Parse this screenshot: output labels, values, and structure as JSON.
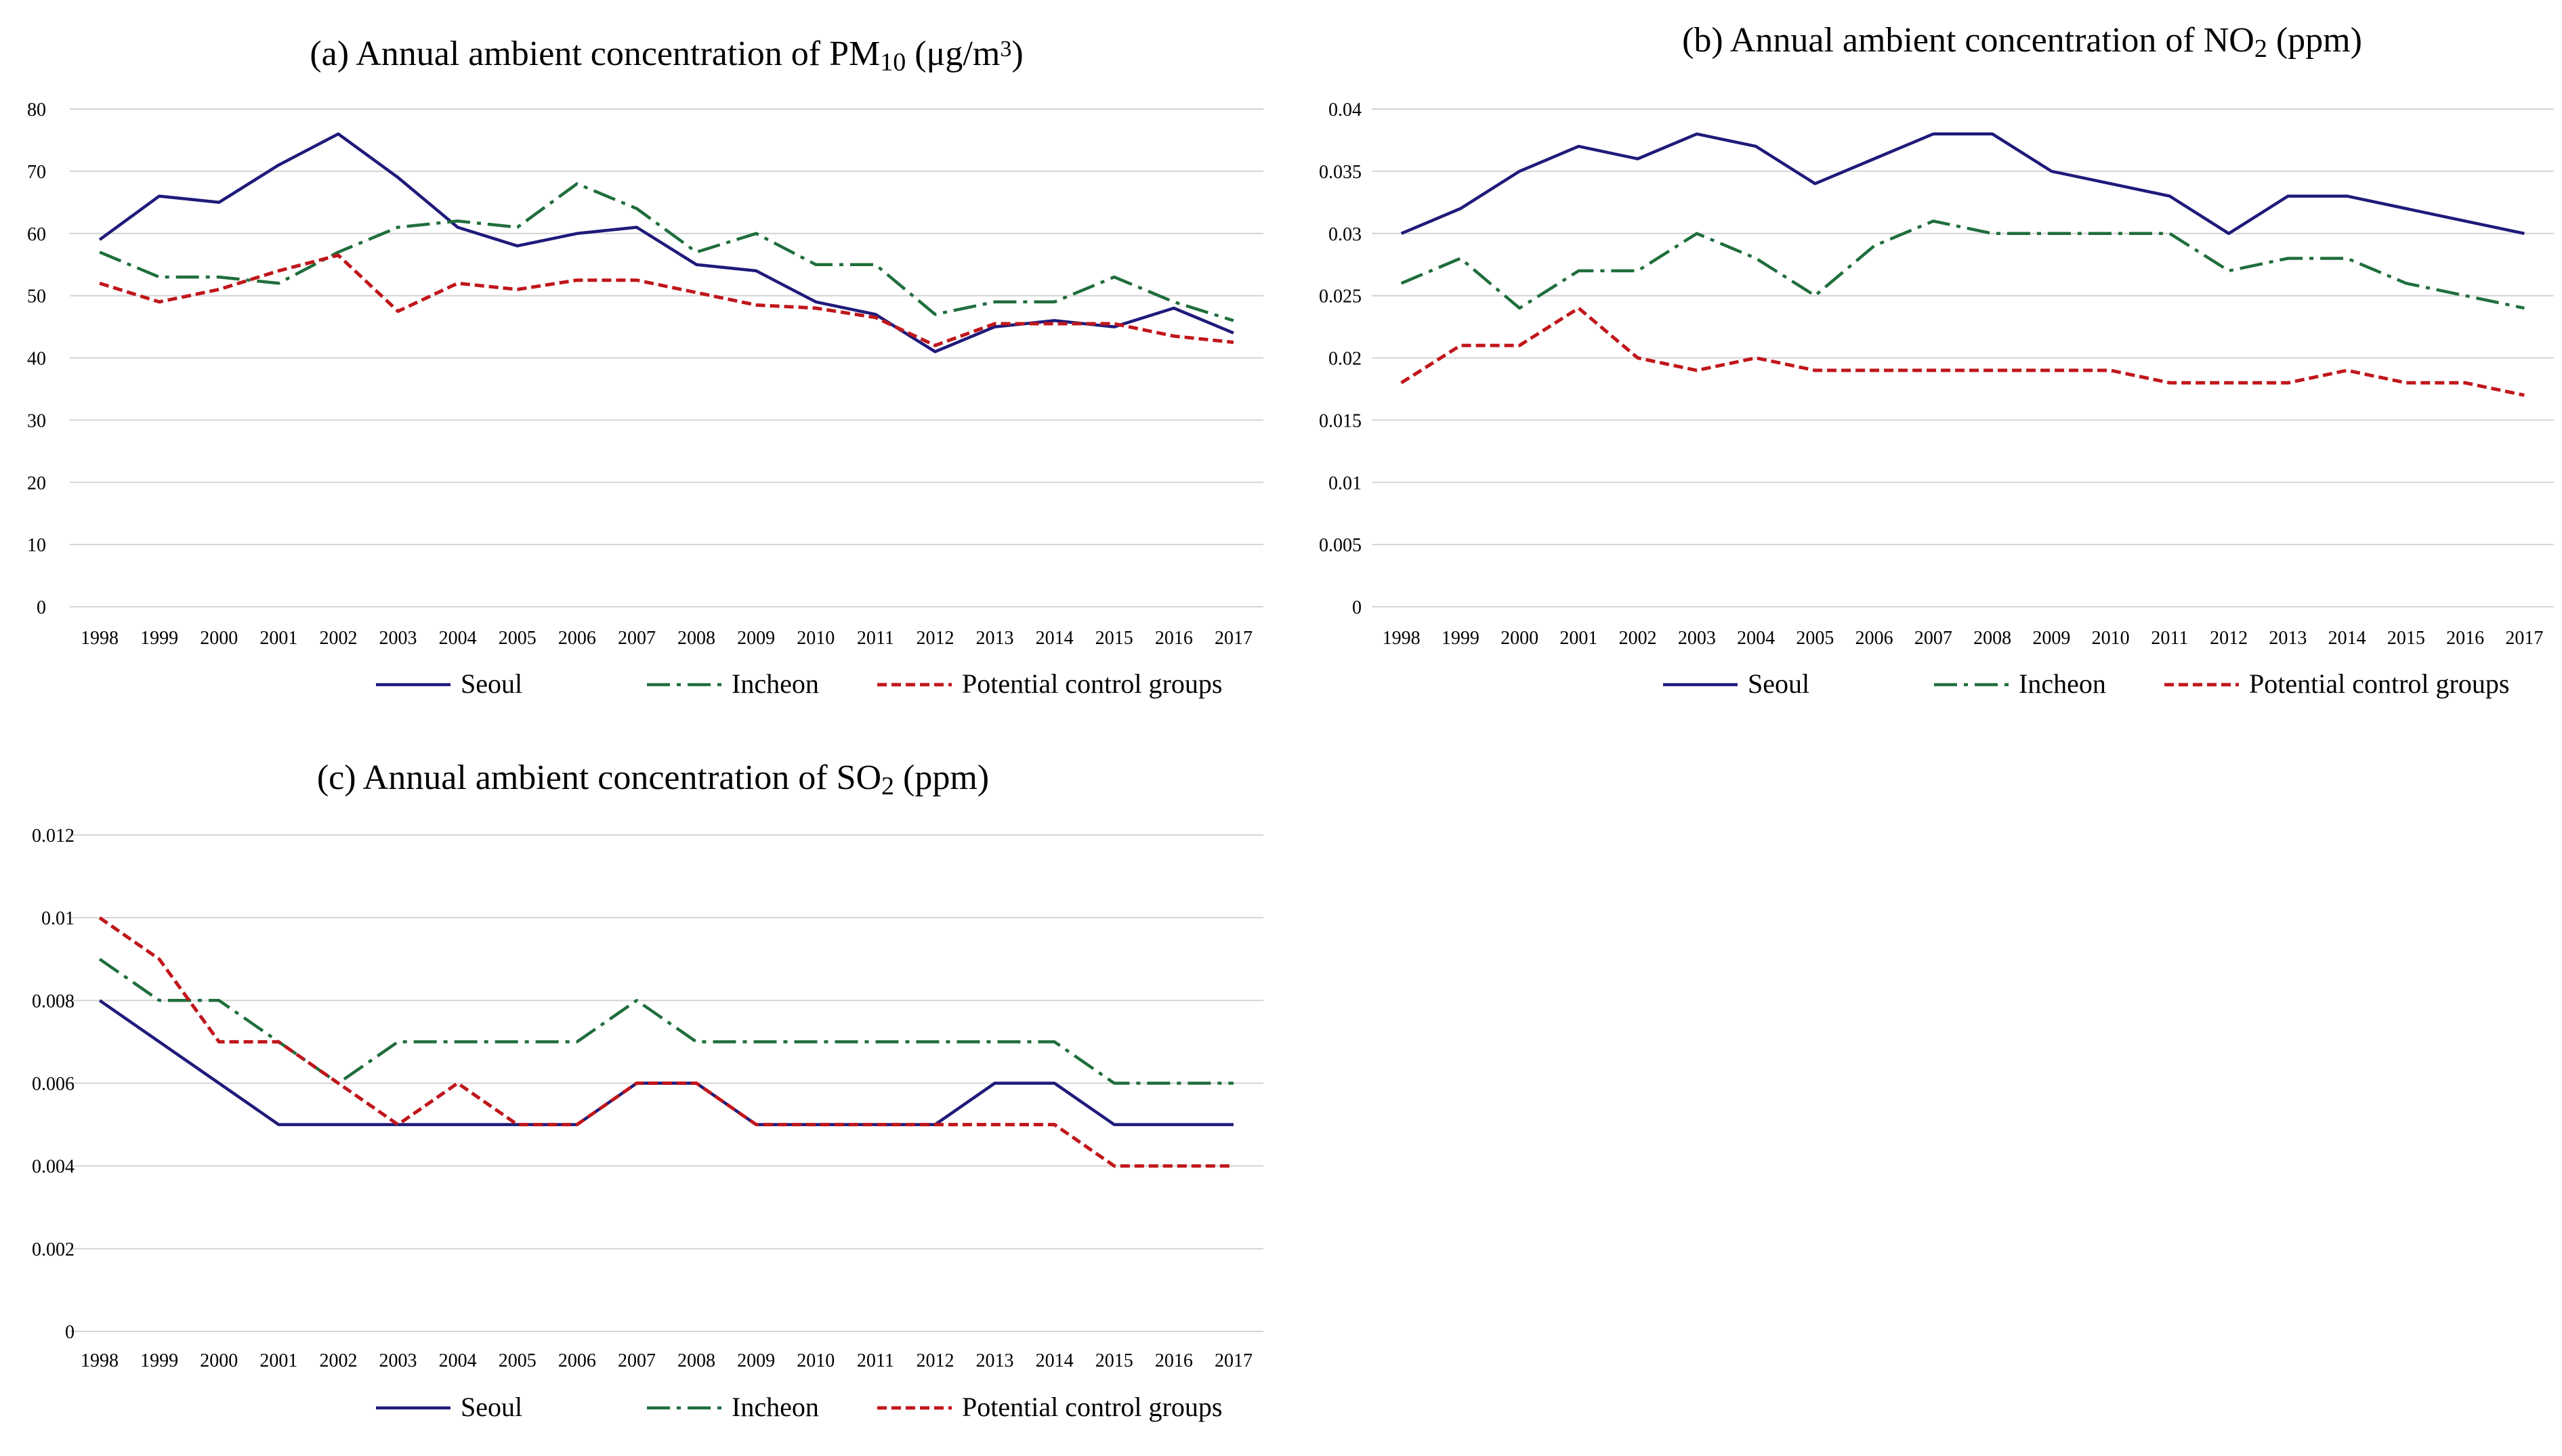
{
  "colors": {
    "seoul": "#1f1a7a",
    "incheon": "#1f6e3c",
    "control": "#c0161b",
    "grid": "#d4d4d4"
  },
  "legend": {
    "seoul": "Seoul",
    "incheon": "Incheon",
    "control": "Potential control groups"
  },
  "chart_data": [
    {
      "type": "line",
      "title_main": "(a) Annual ambient concentration of PM",
      "title_sub": "10",
      "title_rest": " (μg/m",
      "title_sup": "3",
      "title_end": ")",
      "x": [
        "1998",
        "1999",
        "2000",
        "2001",
        "2002",
        "2003",
        "2004",
        "2005",
        "2006",
        "2007",
        "2008",
        "2009",
        "2010",
        "2011",
        "2012",
        "2013",
        "2014",
        "2015",
        "2016",
        "2017"
      ],
      "ylim": [
        0,
        80
      ],
      "yticks": [
        "0",
        "10",
        "20",
        "30",
        "40",
        "50",
        "60",
        "70",
        "80"
      ],
      "series": [
        {
          "name": "Seoul",
          "values": [
            59,
            66,
            65,
            71,
            76,
            69,
            61,
            58,
            60,
            61,
            55,
            54,
            49,
            47,
            41,
            45,
            46,
            45,
            48,
            44
          ]
        },
        {
          "name": "Incheon",
          "values": [
            57,
            53,
            53,
            52,
            57,
            61,
            62,
            61,
            68,
            64,
            57,
            60,
            55,
            55,
            47,
            49,
            49,
            53,
            49,
            46
          ]
        },
        {
          "name": "Potential control groups",
          "values": [
            52,
            49,
            51,
            54,
            56.5,
            47.5,
            52,
            51,
            52.5,
            52.5,
            50.5,
            48.5,
            48,
            46.5,
            42,
            45.5,
            45.5,
            45.5,
            43.5,
            42.5
          ]
        }
      ]
    },
    {
      "type": "line",
      "title_main": "(b) Annual ambient concentration of NO",
      "title_sub": "2",
      "title_rest": " (ppm)",
      "title_sup": "",
      "title_end": "",
      "x": [
        "1998",
        "1999",
        "2000",
        "2001",
        "2002",
        "2003",
        "2004",
        "2005",
        "2006",
        "2007",
        "2008",
        "2009",
        "2010",
        "2011",
        "2012",
        "2013",
        "2014",
        "2015",
        "2016",
        "2017"
      ],
      "ylim": [
        0,
        0.04
      ],
      "yticks": [
        "0",
        "0.005",
        "0.01",
        "0.015",
        "0.02",
        "0.025",
        "0.03",
        "0.035",
        "0.04"
      ],
      "series": [
        {
          "name": "Seoul",
          "values": [
            0.03,
            0.032,
            0.035,
            0.037,
            0.036,
            0.038,
            0.037,
            0.034,
            0.036,
            0.038,
            0.038,
            0.035,
            0.034,
            0.033,
            0.03,
            0.033,
            0.033,
            0.032,
            0.031,
            0.03
          ]
        },
        {
          "name": "Incheon",
          "values": [
            0.026,
            0.028,
            0.024,
            0.027,
            0.027,
            0.03,
            0.028,
            0.025,
            0.029,
            0.031,
            0.03,
            0.03,
            0.03,
            0.03,
            0.027,
            0.028,
            0.028,
            0.026,
            0.025,
            0.024
          ]
        },
        {
          "name": "Potential control groups",
          "values": [
            0.018,
            0.021,
            0.021,
            0.024,
            0.02,
            0.019,
            0.02,
            0.019,
            0.019,
            0.019,
            0.019,
            0.019,
            0.019,
            0.018,
            0.018,
            0.018,
            0.019,
            0.018,
            0.018,
            0.017
          ]
        }
      ]
    },
    {
      "type": "line",
      "title_main": "(c) Annual ambient concentration of SO",
      "title_sub": "2",
      "title_rest": " (ppm)",
      "title_sup": "",
      "title_end": "",
      "x": [
        "1998",
        "1999",
        "2000",
        "2001",
        "2002",
        "2003",
        "2004",
        "2005",
        "2006",
        "2007",
        "2008",
        "2009",
        "2010",
        "2011",
        "2012",
        "2013",
        "2014",
        "2015",
        "2016",
        "2017"
      ],
      "ylim": [
        0,
        0.012
      ],
      "yticks": [
        "0",
        "0.002",
        "0.004",
        "0.006",
        "0.008",
        "0.01",
        "0.012"
      ],
      "series": [
        {
          "name": "Seoul",
          "values": [
            0.008,
            0.007,
            0.006,
            0.005,
            0.005,
            0.005,
            0.005,
            0.005,
            0.005,
            0.006,
            0.006,
            0.005,
            0.005,
            0.005,
            0.005,
            0.006,
            0.006,
            0.005,
            0.005,
            0.005
          ]
        },
        {
          "name": "Incheon",
          "values": [
            0.009,
            0.008,
            0.008,
            0.007,
            0.006,
            0.007,
            0.007,
            0.007,
            0.007,
            0.008,
            0.007,
            0.007,
            0.007,
            0.007,
            0.007,
            0.007,
            0.007,
            0.006,
            0.006,
            0.006
          ]
        },
        {
          "name": "Potential control groups",
          "values": [
            0.01,
            0.009,
            0.007,
            0.007,
            0.006,
            0.005,
            0.006,
            0.005,
            0.005,
            0.006,
            0.006,
            0.005,
            0.005,
            0.005,
            0.005,
            0.005,
            0.005,
            0.004,
            0.004,
            0.004
          ]
        }
      ]
    }
  ]
}
